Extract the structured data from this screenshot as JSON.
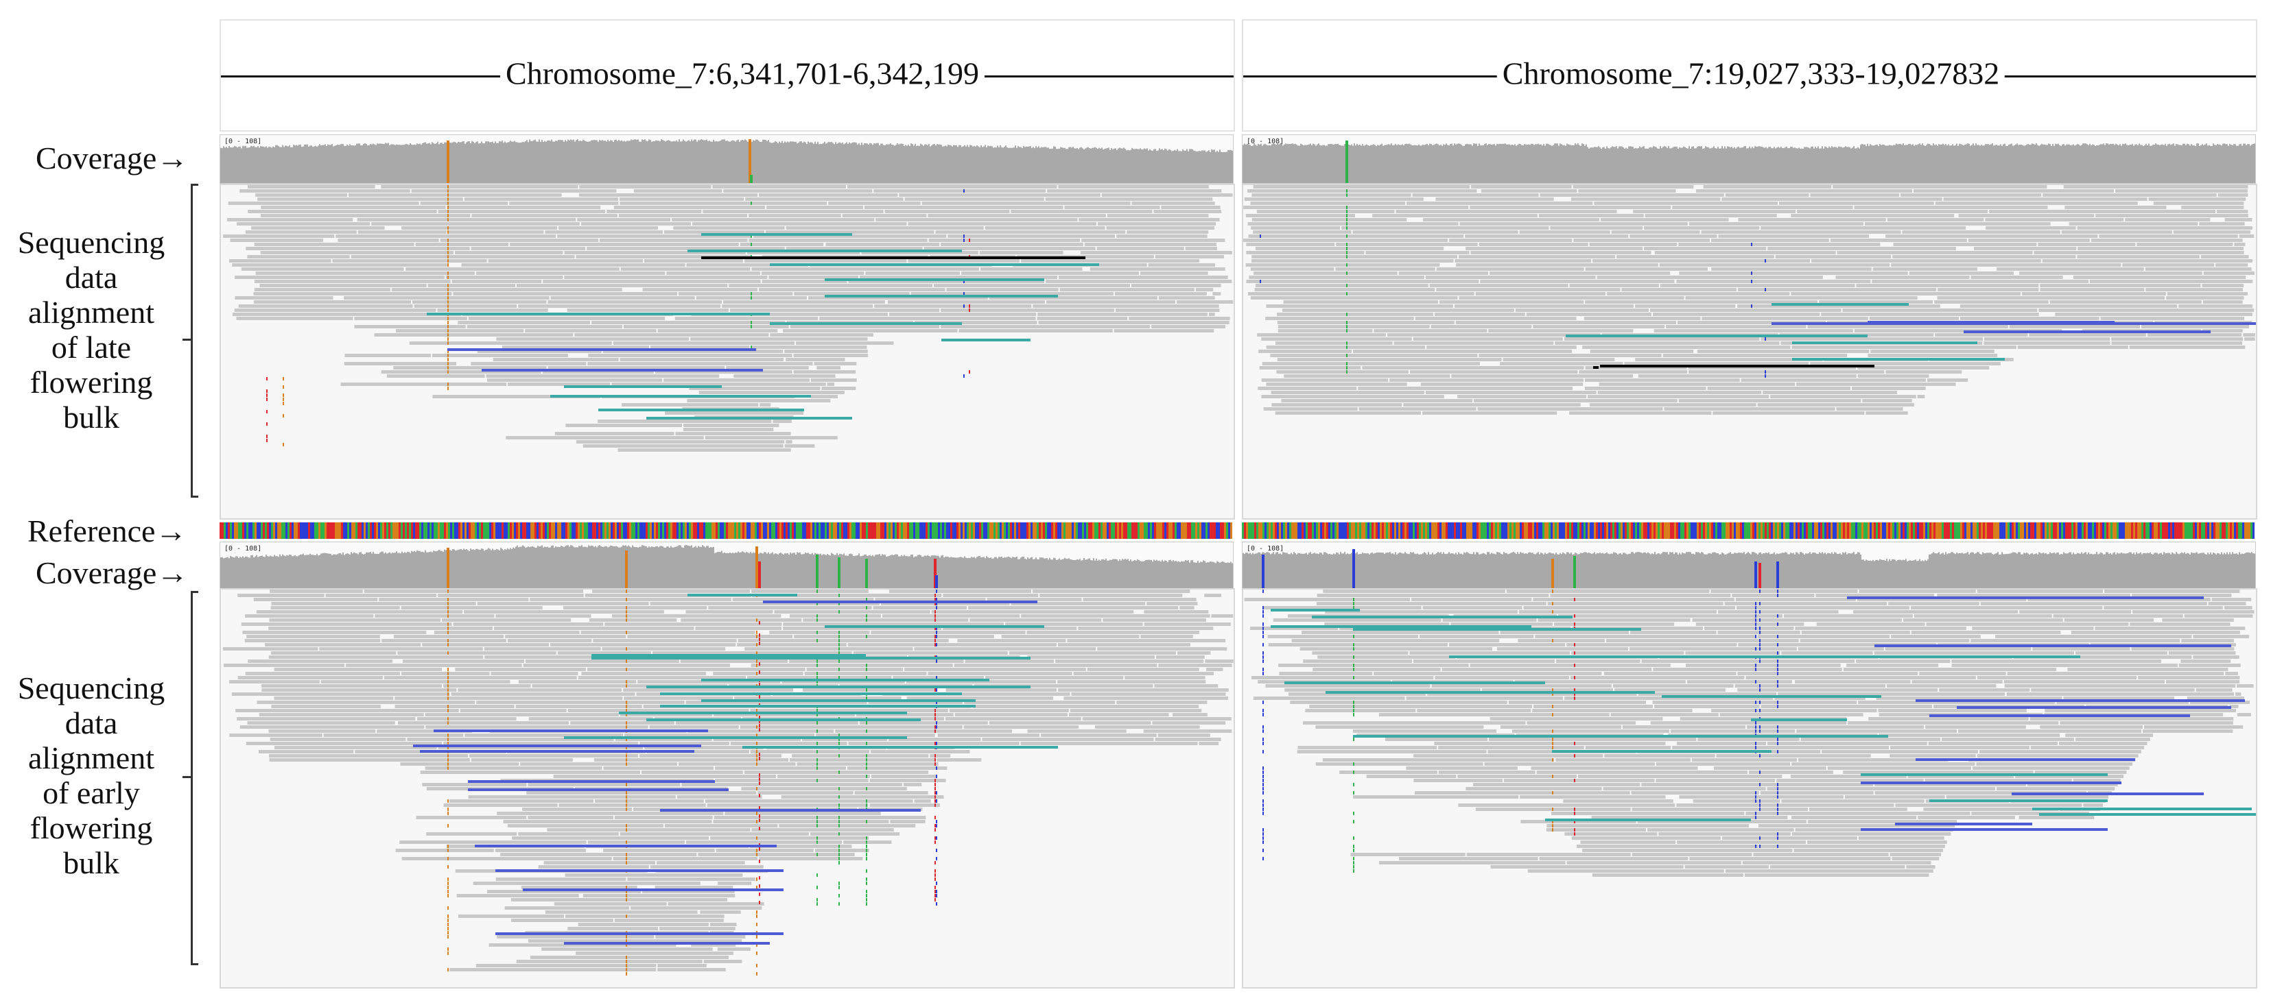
{
  "figure": {
    "left_labels": {
      "coverage_top": "Coverage→",
      "reference": "Reference→",
      "coverage_bottom": "Coverage→",
      "late_bulk_lines": [
        "Sequencing",
        "data",
        "alignment",
        "of late",
        "flowering",
        "bulk"
      ],
      "early_bulk_lines": [
        "Sequencing",
        "data",
        "alignment",
        "of early",
        "flowering",
        "bulk"
      ]
    },
    "loci": [
      {
        "region": "Chromosome_7:6,341,701-6,342,199",
        "coverage_range_late": "[0 - 108]",
        "coverage_range_early": "[0 - 108]"
      },
      {
        "region": "Chromosome_7:19,027,333-19,027832",
        "coverage_range_late": "[0 - 108]",
        "coverage_range_early": "[0 - 108]"
      }
    ],
    "colors": {
      "read": "#c8c8c8",
      "read_outline": "#bcbcbc",
      "teal_read": "#3aaaa6",
      "blue_read": "#4c5bd4",
      "black_read": "#000000",
      "coverage": "#a9a9a9",
      "base_A": "#2db34a",
      "base_C": "#2a3dd6",
      "base_G": "#d87f1c",
      "base_T": "#e0242b",
      "panel_bg": "#f7f7f7"
    }
  }
}
